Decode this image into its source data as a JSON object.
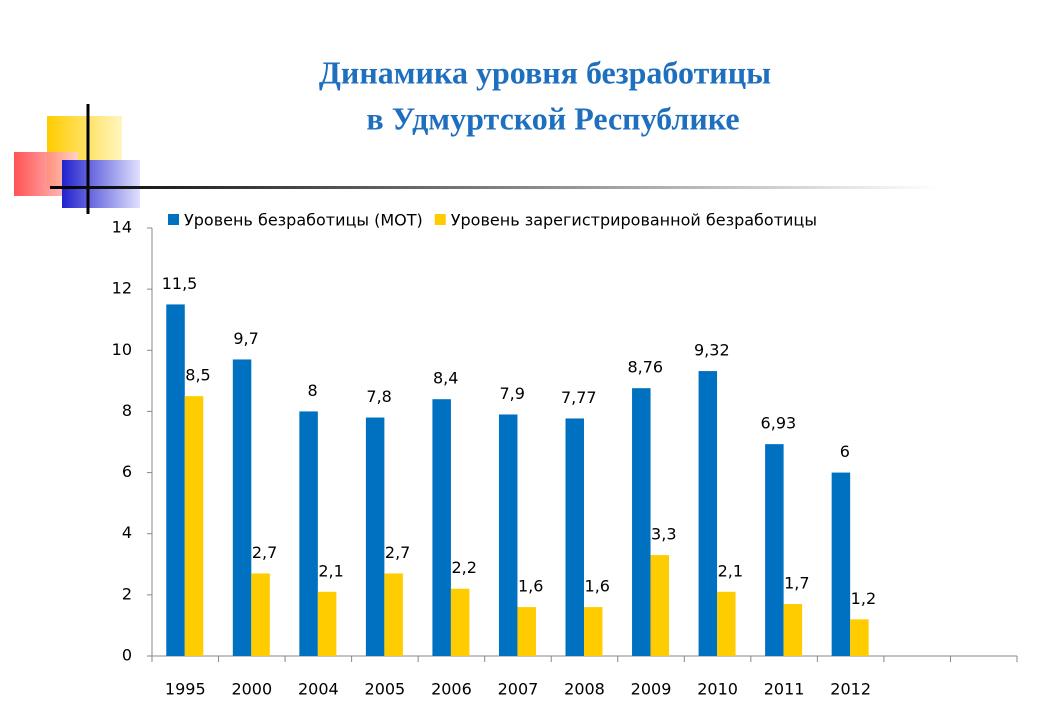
{
  "chart_data": {
    "type": "bar",
    "title": [
      "Динамика уровня безработицы",
      "в Удмуртской Республике"
    ],
    "categories": [
      "1995",
      "2000",
      "2004",
      "2005",
      "2006",
      "2007",
      "2008",
      "2009",
      "2010",
      "2011",
      "2012",
      null,
      null
    ],
    "series": [
      {
        "name": "Уровень безработицы (МОТ)",
        "color": "#0070c0",
        "values": [
          11.5,
          9.7,
          8,
          7.8,
          8.4,
          7.9,
          7.77,
          8.76,
          9.32,
          6.93,
          6,
          null,
          null
        ],
        "value_labels": [
          "11,5",
          "9,7",
          "8",
          "7,8",
          "8,4",
          "7,9",
          "7,77",
          "8,76",
          "9,32",
          "6,93",
          "6",
          null,
          null
        ]
      },
      {
        "name": "Уровень зарегистрированной безработицы",
        "color": "#ffcc00",
        "values": [
          8.5,
          2.7,
          2.1,
          2.7,
          2.2,
          1.6,
          1.6,
          3.3,
          2.1,
          1.7,
          1.2,
          null,
          null
        ],
        "value_labels": [
          "8,5",
          "2,7",
          "2,1",
          "2,7",
          "2,2",
          "1,6",
          "1,6",
          "3,3",
          "2,1",
          "1,7",
          "1,2",
          null,
          null
        ]
      }
    ],
    "ylim": [
      0,
      14
    ],
    "yticks": [
      0,
      2,
      4,
      6,
      8,
      10,
      12,
      14
    ],
    "grid": false,
    "legend": "top"
  }
}
